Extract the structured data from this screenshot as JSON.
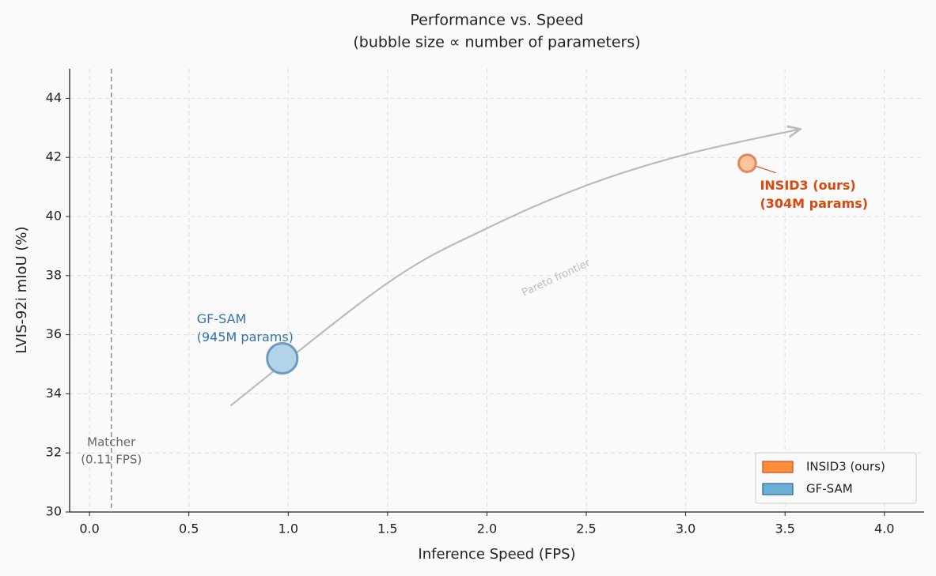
{
  "chart_data": {
    "type": "bubble",
    "title": "Performance vs. Speed",
    "subtitle": "(bubble size ∝ number of parameters)",
    "x_label": "Inference Speed (FPS)",
    "y_label": "LVIS-92i mIoU (%)",
    "xlim": [
      -0.1,
      4.2
    ],
    "ylim": [
      30,
      45
    ],
    "xticks": [
      {
        "value": 0,
        "label": "0.0"
      },
      0.5,
      {
        "value": 1,
        "label": "1.0"
      },
      1.5,
      {
        "value": 2,
        "label": "2.0"
      },
      2.5,
      {
        "value": 3,
        "label": "3.0"
      },
      3.5,
      {
        "value": 4,
        "label": "4.0"
      }
    ],
    "yticks": [
      30,
      32,
      34,
      36,
      38,
      40,
      42,
      44
    ],
    "grid": true,
    "legend_position": "lower-right",
    "series": [
      {
        "name": "INSID3 (ours)",
        "color": "#fd8d3c",
        "edge_color": "#d95319",
        "x": [
          3.31
        ],
        "y": [
          41.8
        ],
        "size": [
          304
        ],
        "annotation": [
          "INSID3 (ours)",
          "(304M params)"
        ]
      },
      {
        "name": "GF-SAM",
        "color": "#6baed6",
        "edge_color": "#2f6fa8",
        "x": [
          0.97
        ],
        "y": [
          35.2
        ],
        "size": [
          945
        ],
        "annotation": [
          "GF-SAM",
          "(945M params)"
        ]
      }
    ],
    "reference_line": {
      "x": 0.11,
      "label": [
        "Matcher",
        "(0.11 FPS)"
      ]
    },
    "frontier": {
      "label": "Pareto frontier",
      "x": [
        0.71,
        1.5,
        2.0,
        2.5,
        3.0,
        3.57
      ],
      "y": [
        33.6,
        37.75,
        39.6,
        41.05,
        42.1,
        42.95
      ]
    }
  }
}
